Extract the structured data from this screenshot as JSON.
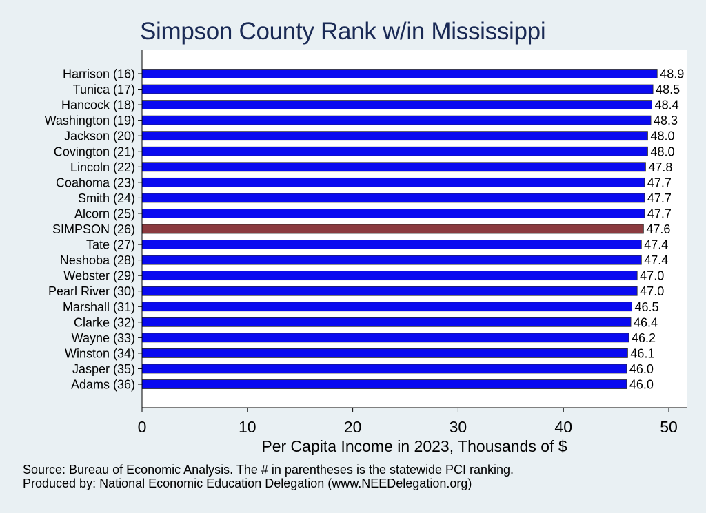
{
  "chart_data": {
    "type": "bar",
    "orientation": "horizontal",
    "title": "Simpson County Rank w/in Mississippi",
    "xlabel": "Per Capita Income in 2023, Thousands of $",
    "ylabel": "",
    "xlim": [
      0,
      51.7
    ],
    "xticks": [
      0,
      10,
      20,
      30,
      40,
      50
    ],
    "grid": false,
    "legend": "none",
    "categories": [
      "Harrison (16)",
      "Tunica (17)",
      "Hancock (18)",
      "Washington (19)",
      "Jackson (20)",
      "Covington (21)",
      "Lincoln (22)",
      "Coahoma (23)",
      "Smith (24)",
      "Alcorn (25)",
      "SIMPSON (26)",
      "Tate (27)",
      "Neshoba (28)",
      "Webster (29)",
      "Pearl River (30)",
      "Marshall (31)",
      "Clarke (32)",
      "Wayne (33)",
      "Winston (34)",
      "Jasper (35)",
      "Adams (36)"
    ],
    "values": [
      48.9,
      48.5,
      48.4,
      48.3,
      48.0,
      48.0,
      47.8,
      47.7,
      47.7,
      47.7,
      47.6,
      47.4,
      47.4,
      47.0,
      47.0,
      46.5,
      46.4,
      46.2,
      46.1,
      46.0,
      46.0
    ],
    "value_labels": [
      "48.9",
      "48.5",
      "48.4",
      "48.3",
      "48.0",
      "48.0",
      "47.8",
      "47.7",
      "47.7",
      "47.7",
      "47.6",
      "47.4",
      "47.4",
      "47.0",
      "47.0",
      "46.5",
      "46.4",
      "46.2",
      "46.1",
      "46.0",
      "46.0"
    ],
    "highlight_category": "SIMPSON (26)"
  },
  "colors": {
    "background": "#e9f0f3",
    "plot_background": "#ffffff",
    "bar": "#0a0af0",
    "bar_highlight": "#8b3a3f",
    "bar_edge": "#2a2a2a",
    "title": "#1a2a55"
  },
  "notes": {
    "source": "Source: Bureau of Economic Analysis. The # in parentheses is the statewide PCI ranking.",
    "producer": "Produced by: National Economic Education Delegation (www.NEEDelegation.org)"
  }
}
